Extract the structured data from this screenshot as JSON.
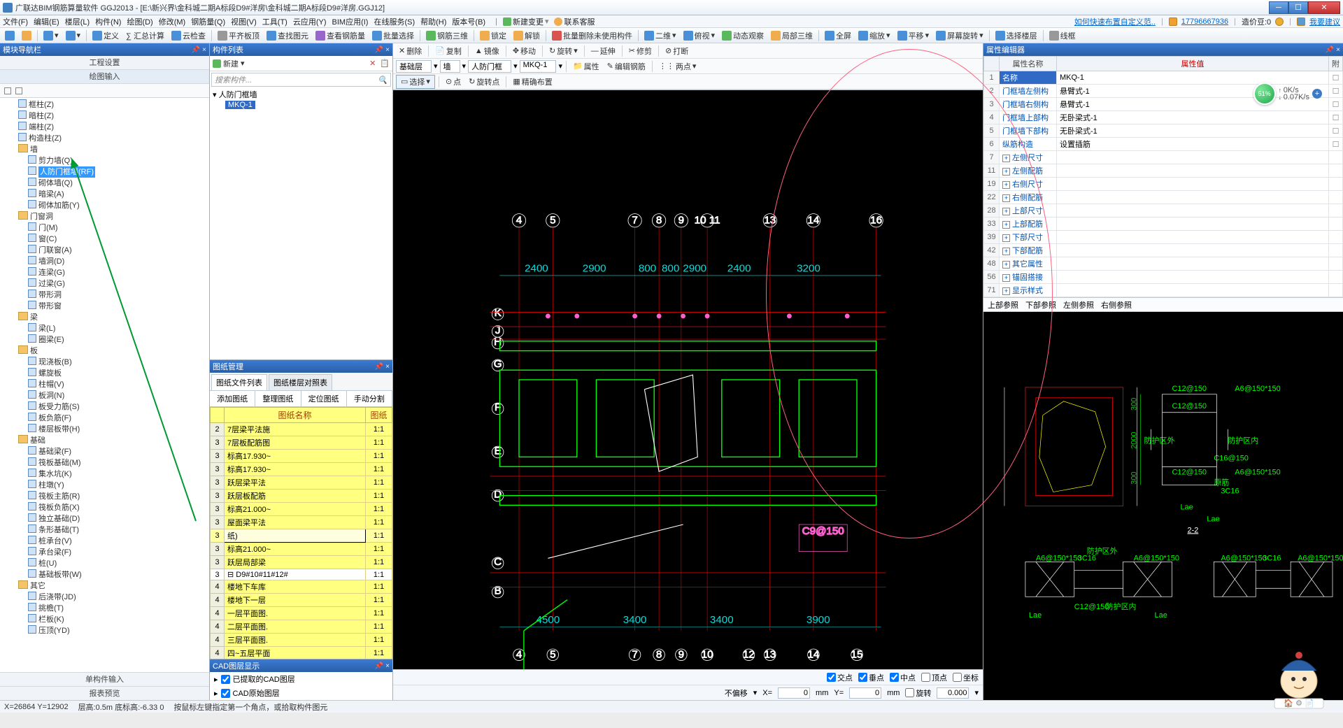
{
  "titlebar": {
    "app": "广联达BIM钢筋算量软件 GGJ2013 - [E:\\新兴界\\金科城二期A标段D9#洋房\\金科城二期A标段D9#洋房.GGJ12]"
  },
  "menu": [
    "文件(F)",
    "编辑(E)",
    "楼层(L)",
    "构件(N)",
    "绘图(D)",
    "修改(M)",
    "钢筋量(Q)",
    "视图(V)",
    "工具(T)",
    "云应用(Y)",
    "BIM应用(I)",
    "在线服务(S)",
    "帮助(H)",
    "版本号(B)"
  ],
  "menu_right": {
    "new_change": "新建变更",
    "contact": "联系客服",
    "faq": "如何快速布置自定义范..",
    "user": "17796667936",
    "beans_label": "造价豆:0",
    "suggest": "我要建议"
  },
  "toolbar2": [
    "定义",
    "∑ 汇总计算",
    "云检查",
    "平齐板顶",
    "查找图元",
    "查看钢筋量",
    "批量选择",
    "钢筋三维",
    "锁定",
    "解锁",
    "批量删除未使用构件",
    "二维",
    "俯视",
    "动态观察",
    "局部三维",
    "全屏",
    "缩放",
    "平移",
    "屏幕旋转",
    "选择楼层",
    "线框"
  ],
  "left": {
    "panel": "模块导航栏",
    "sub1": "工程设置",
    "sub2": "绘图输入",
    "bottom_tabs": [
      "单构件输入",
      "报表预览"
    ],
    "tree": {
      "groups": [
        {
          "items": [
            "框柱(Z)",
            "暗柱(Z)",
            "端柱(Z)",
            "构造柱(Z)"
          ]
        },
        {
          "name": "墙",
          "items": [
            "剪力墙(Q)",
            "人防门框墙(RF)",
            "砌体墙(Q)",
            "暗梁(A)",
            "砌体加筋(Y)"
          ],
          "sel": 1
        },
        {
          "name": "门窗洞",
          "items": [
            "门(M)",
            "窗(C)",
            "门联窗(A)",
            "墙洞(D)",
            "连梁(G)",
            "过梁(G)",
            "带形洞",
            "带形窗"
          ]
        },
        {
          "name": "梁",
          "items": [
            "梁(L)",
            "圈梁(E)"
          ]
        },
        {
          "name": "板",
          "items": [
            "现浇板(B)",
            "螺旋板",
            "柱帽(V)",
            "板洞(N)",
            "板受力筋(S)",
            "板负筋(F)",
            "楼层板带(H)"
          ]
        },
        {
          "name": "基础",
          "items": [
            "基础梁(F)",
            "筏板基础(M)",
            "集水坑(K)",
            "柱墩(Y)",
            "筏板主筋(R)",
            "筏板负筋(X)",
            "独立基础(D)",
            "条形基础(T)",
            "桩承台(V)",
            "承台梁(F)",
            "桩(U)",
            "基础板带(W)"
          ]
        },
        {
          "name": "其它",
          "items": [
            "后浇带(JD)",
            "挑檐(T)",
            "栏板(K)",
            "压顶(YD)"
          ]
        }
      ]
    }
  },
  "mid": {
    "panel": "构件列表",
    "new": "新建",
    "search_ph": "搜索构件...",
    "root": "人防门框墙",
    "child": "MKQ-1",
    "dm_panel": "图纸管理",
    "dm_tabs": [
      "图纸文件列表",
      "图纸楼层对照表"
    ],
    "dm_btns": [
      "添加图纸",
      "整理图纸",
      "定位图纸",
      "手动分割"
    ],
    "dm_header": [
      "图纸名称",
      "图纸"
    ],
    "dm_rows": [
      {
        "n": "2",
        "name": "7层梁平法施",
        "r": "1:1"
      },
      {
        "n": "3",
        "name": "7层板配筋图",
        "r": "1:1"
      },
      {
        "n": "3",
        "name": "标高17.930~",
        "r": "1:1"
      },
      {
        "n": "3",
        "name": "标高17.930~",
        "r": "1:1"
      },
      {
        "n": "3",
        "name": "跃层梁平法",
        "r": "1:1"
      },
      {
        "n": "3",
        "name": "跃层板配筋",
        "r": "1:1"
      },
      {
        "n": "3",
        "name": "标高21.000~",
        "r": "1:1"
      },
      {
        "n": "3",
        "name": "屋面梁平法",
        "r": "1:1"
      },
      {
        "n": "3",
        "name": "纸)",
        "r": "1:1",
        "sel": true
      },
      {
        "n": "3",
        "name": "标高21.000~",
        "r": "1:1"
      },
      {
        "n": "3",
        "name": "跃层局部梁",
        "r": "1:1"
      },
      {
        "n": "3",
        "name": "D9#10#11#12#",
        "r": "1:1",
        "white": true
      },
      {
        "n": "4",
        "name": "楼地下车库",
        "r": "1:1"
      },
      {
        "n": "4",
        "name": "楼地下一层",
        "r": "1:1"
      },
      {
        "n": "4",
        "name": "一层平面图.",
        "r": "1:1"
      },
      {
        "n": "4",
        "name": "二层平面图.",
        "r": "1:1"
      },
      {
        "n": "4",
        "name": "三层平面图.",
        "r": "1:1"
      },
      {
        "n": "4",
        "name": "四~五层平面",
        "r": "1:1"
      },
      {
        "n": "4",
        "name": "六层平面图.",
        "r": "1:1"
      },
      {
        "n": "4",
        "name": "七层平面图.",
        "r": "1:1"
      },
      {
        "n": "4",
        "name": "跃层平面图.",
        "r": "1:1"
      },
      {
        "n": "4",
        "name": "屋顶层平面",
        "r": "1:1"
      }
    ],
    "cad_panel": "CAD图层显示",
    "cad_rows": [
      "已提取的CAD图层",
      "CAD原始图层"
    ]
  },
  "draw": {
    "tb1": {
      "del": "删除",
      "copy": "复制",
      "mirror": "镜像",
      "move": "移动",
      "rotate": "旋转",
      "extend": "延伸",
      "trim": "修剪",
      "break": "打断"
    },
    "tb2": {
      "sel1": "基础层",
      "sel2": "墙",
      "sel3": "人防门框",
      "sel4": "MKQ-1",
      "prop": "属性",
      "edit": "编辑钢筋",
      "two": "两点"
    },
    "tb3": {
      "select": "选择",
      "point": "点",
      "rotpoint": "旋转点",
      "precise": "精确布置"
    },
    "axis_top": [
      "4",
      "5",
      "7",
      "8",
      "9",
      "10 11",
      "13",
      "14",
      "16"
    ],
    "dims_top": [
      "2400",
      "2900",
      "800",
      "800",
      "2900",
      "2400",
      "3200"
    ],
    "axis_left": [
      "K",
      "J",
      "H",
      "G",
      "F",
      "E",
      "D",
      "C",
      "B"
    ],
    "dims_bot": [
      "4500",
      "3400",
      "3400",
      "3900"
    ],
    "axis_bot": [
      "4",
      "5",
      "7",
      "8",
      "9",
      "10",
      "12",
      "13",
      "14",
      "15"
    ],
    "snap": {
      "cross": "交点",
      "perp": "垂点",
      "mid": "中点",
      "top": "顶点",
      "coord": "坐标",
      "noskew": "不偏移",
      "x": "0",
      "y": "0",
      "rot": "旋转",
      "rotval": "0.000"
    }
  },
  "right": {
    "panel": "属性编辑器",
    "head": [
      "属性名称",
      "属性值",
      "附"
    ],
    "rows": [
      {
        "n": "1",
        "name": "名称",
        "val": "MKQ-1",
        "sel": true
      },
      {
        "n": "2",
        "name": "门框墙左侧构",
        "val": "悬臂式-1"
      },
      {
        "n": "3",
        "name": "门框墙右侧构",
        "val": "悬臂式-1"
      },
      {
        "n": "4",
        "name": "门框墙上部构",
        "val": "无卧梁式-1"
      },
      {
        "n": "5",
        "name": "门框墙下部构",
        "val": "无卧梁式-1"
      },
      {
        "n": "6",
        "name": "纵筋构造",
        "val": "设置插筋"
      },
      {
        "n": "7",
        "name": "左侧尺寸",
        "exp": true
      },
      {
        "n": "11",
        "name": "左侧配筋",
        "exp": true
      },
      {
        "n": "19",
        "name": "右侧尺寸",
        "exp": true
      },
      {
        "n": "22",
        "name": "右侧配筋",
        "exp": true
      },
      {
        "n": "28",
        "name": "上部尺寸",
        "exp": true
      },
      {
        "n": "33",
        "name": "上部配筋",
        "exp": true
      },
      {
        "n": "39",
        "name": "下部尺寸",
        "exp": true
      },
      {
        "n": "42",
        "name": "下部配筋",
        "exp": true
      },
      {
        "n": "48",
        "name": "其它属性",
        "exp": true
      },
      {
        "n": "56",
        "name": "锚固搭接",
        "exp": true
      },
      {
        "n": "71",
        "name": "显示样式",
        "exp": true
      }
    ],
    "ref_tabs": [
      "上部参照",
      "下部参照",
      "左侧参照",
      "右侧参照"
    ],
    "section_label": "2-2",
    "labels": {
      "out": "防护区外",
      "in": "防护区内",
      "c12": "C12@150",
      "c16": "C16@150",
      "a60": "A6@150*150",
      "c316": "3C16",
      "lae": "Lae"
    }
  },
  "status": {
    "coord": "X=26864  Y=12902",
    "h": "层高:0.5m  底标高:-6.33 0",
    "hint": "按鼠标左键指定第一个角点，或拾取构件图元"
  },
  "speed": {
    "pct": "51%",
    "up": "0K/s",
    "dn": "0.07K/s"
  },
  "colors": {
    "hl": "#316ac5",
    "yellow": "#ffff80",
    "red": "#ff0000",
    "green": "#00ff00",
    "cyan": "#00e0e0",
    "magenta": "#ff60d0"
  }
}
